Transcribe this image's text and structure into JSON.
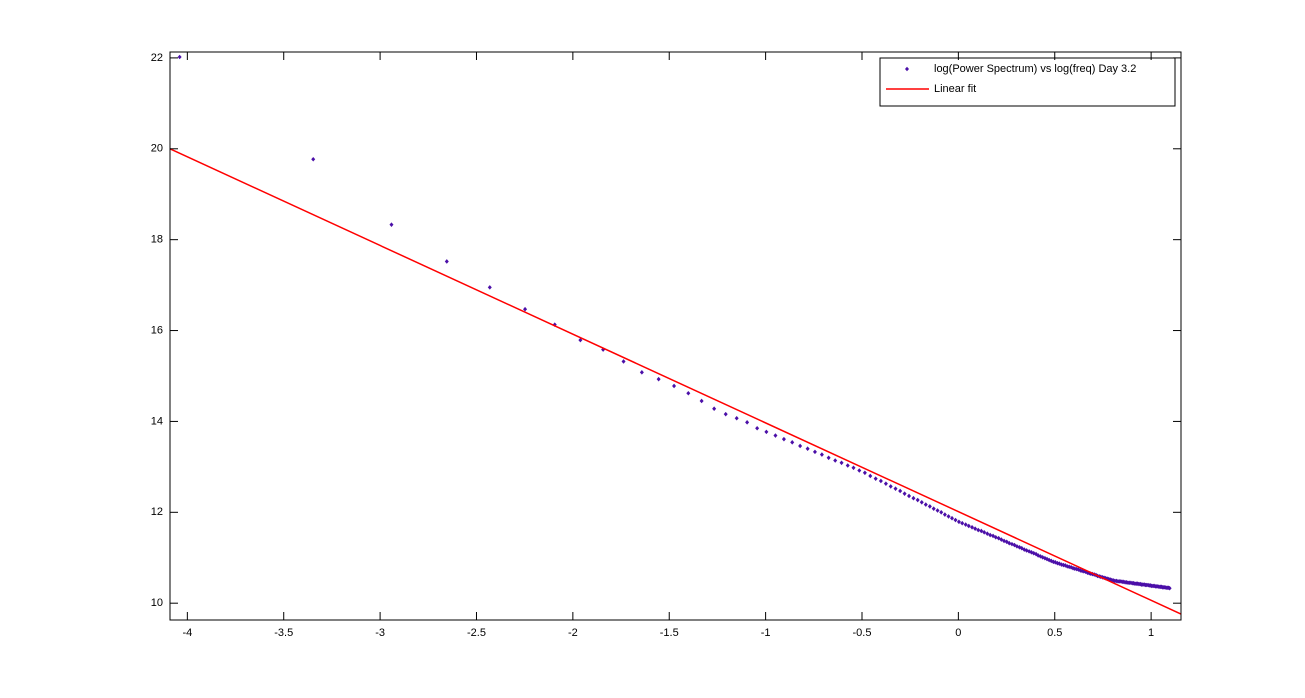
{
  "chart_data": {
    "type": "scatter",
    "xlim": [
      -4.09,
      1.155
    ],
    "ylim": [
      9.63,
      22.13
    ],
    "xticks": [
      -4,
      -3.5,
      -3,
      -2.5,
      -2,
      -1.5,
      -1,
      -0.5,
      0,
      0.5,
      1
    ],
    "yticks": [
      10,
      12,
      14,
      16,
      18,
      20,
      22
    ],
    "grid": false,
    "legend": "northeast",
    "series": [
      {
        "name": "log(Power Spectrum) vs log(freq) Day 3.2",
        "color": "#4b0fa8",
        "kind": "markers",
        "x": [
          -4.04,
          -3.347,
          -2.941,
          -2.654,
          -2.431,
          -2.248,
          -2.094,
          -1.961,
          -1.843,
          -1.737,
          -1.642,
          -1.555,
          -1.475,
          -1.401,
          -1.332,
          -1.267,
          -1.207,
          -1.15,
          -1.096,
          -1.044,
          -0.996,
          -0.949,
          -0.905,
          -0.862,
          -0.821,
          -0.782,
          -0.744,
          -0.708,
          -0.673,
          -0.639,
          -0.606,
          -0.574,
          -0.544,
          -0.514,
          -0.485,
          -0.457,
          -0.429,
          -0.402,
          -0.376,
          -0.351,
          -0.326,
          -0.302,
          -0.279,
          -0.256,
          -0.233,
          -0.211,
          -0.19,
          -0.169,
          -0.148,
          -0.128,
          -0.108,
          -0.089,
          -0.07,
          -0.051,
          -0.033,
          -0.015,
          0.003,
          0.02,
          0.038,
          0.054,
          0.071,
          0.087,
          0.103,
          0.119,
          0.134,
          0.15,
          0.165,
          0.18,
          0.194,
          0.209,
          0.223,
          0.237,
          0.251,
          0.264,
          0.278,
          0.291,
          0.304,
          0.317,
          0.329,
          0.342,
          0.354,
          0.367,
          0.379,
          0.391,
          0.403,
          0.414,
          0.426,
          0.437,
          0.449,
          0.46,
          0.471,
          0.482,
          0.493,
          0.503,
          0.514,
          0.524,
          0.535,
          0.545,
          0.555,
          0.565,
          0.575,
          0.585,
          0.595,
          0.604,
          0.614,
          0.623,
          0.633,
          0.642,
          0.651,
          0.661,
          0.67,
          0.679,
          0.687,
          0.696,
          0.705,
          0.714,
          0.722,
          0.731,
          0.739,
          0.748,
          0.756,
          0.764,
          0.772,
          0.78,
          0.788,
          0.796,
          0.804,
          0.812,
          0.82,
          0.828,
          0.835,
          0.843,
          0.85,
          0.858,
          0.865,
          0.873,
          0.88,
          0.887,
          0.895,
          0.902,
          0.909,
          0.916,
          0.923,
          0.93,
          0.937,
          0.944,
          0.95,
          0.957,
          0.964,
          0.971,
          0.977,
          0.984,
          0.99,
          0.997,
          1.003,
          1.01,
          1.016,
          1.023,
          1.029,
          1.035,
          1.041,
          1.048,
          1.054,
          1.06,
          1.066,
          1.072,
          1.078,
          1.084,
          1.09,
          1.096
        ],
        "values": [
          22.02,
          19.77,
          18.33,
          17.52,
          16.95,
          16.47,
          16.13,
          15.79,
          15.58,
          15.32,
          15.08,
          14.93,
          14.78,
          14.62,
          14.45,
          14.28,
          14.16,
          14.07,
          13.98,
          13.85,
          13.77,
          13.69,
          13.61,
          13.54,
          13.46,
          13.4,
          13.33,
          13.27,
          13.2,
          13.14,
          13.09,
          13.03,
          12.98,
          12.92,
          12.87,
          12.8,
          12.74,
          12.69,
          12.63,
          12.57,
          12.52,
          12.47,
          12.41,
          12.36,
          12.31,
          12.27,
          12.22,
          12.17,
          12.13,
          12.08,
          12.04,
          12.0,
          11.95,
          11.91,
          11.87,
          11.83,
          11.79,
          11.76,
          11.73,
          11.7,
          11.67,
          11.64,
          11.61,
          11.59,
          11.56,
          11.53,
          11.5,
          11.48,
          11.45,
          11.43,
          11.4,
          11.37,
          11.35,
          11.32,
          11.3,
          11.28,
          11.25,
          11.23,
          11.21,
          11.18,
          11.16,
          11.14,
          11.12,
          11.1,
          11.08,
          11.05,
          11.03,
          11.01,
          10.99,
          10.97,
          10.95,
          10.93,
          10.91,
          10.9,
          10.88,
          10.87,
          10.85,
          10.84,
          10.83,
          10.81,
          10.8,
          10.79,
          10.77,
          10.76,
          10.75,
          10.74,
          10.72,
          10.71,
          10.7,
          10.69,
          10.67,
          10.66,
          10.65,
          10.64,
          10.63,
          10.62,
          10.6,
          10.59,
          10.58,
          10.57,
          10.56,
          10.55,
          10.54,
          10.53,
          10.52,
          10.51,
          10.5,
          10.49,
          10.49,
          10.48,
          10.48,
          10.48,
          10.47,
          10.47,
          10.46,
          10.46,
          10.45,
          10.45,
          10.45,
          10.44,
          10.44,
          10.43,
          10.43,
          10.43,
          10.42,
          10.42,
          10.41,
          10.41,
          10.41,
          10.4,
          10.4,
          10.4,
          10.39,
          10.39,
          10.38,
          10.38,
          10.38,
          10.37,
          10.37,
          10.37,
          10.36,
          10.36,
          10.36,
          10.35,
          10.35,
          10.35,
          10.34,
          10.34,
          10.34,
          10.33
        ]
      },
      {
        "name": "Linear fit",
        "color": "#ff0000",
        "kind": "line",
        "x": [
          -4.09,
          1.155
        ],
        "values": [
          20.0,
          9.76
        ]
      }
    ]
  }
}
